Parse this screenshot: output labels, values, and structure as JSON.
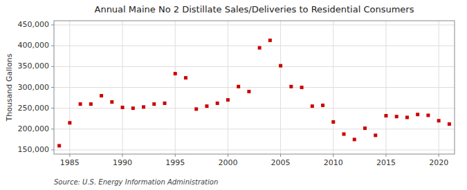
{
  "chart_data": {
    "type": "scatter",
    "title": "Annual Maine No 2 Distillate Sales/Deliveries to Residential Consumers",
    "ylabel": "Thousand Gallons",
    "annotation": "Source: U.S. Energy Information Administration",
    "color": "#cc0000",
    "marker": "square",
    "grid": true,
    "x": [
      1984,
      1985,
      1986,
      1987,
      1988,
      1989,
      1990,
      1991,
      1992,
      1993,
      1994,
      1995,
      1996,
      1997,
      1998,
      1999,
      2000,
      2001,
      2002,
      2003,
      2004,
      2005,
      2006,
      2007,
      2008,
      2009,
      2010,
      2011,
      2012,
      2013,
      2014,
      2015,
      2016,
      2017,
      2018,
      2019,
      2020,
      2021
    ],
    "values": [
      160000,
      215000,
      260000,
      260000,
      280000,
      265000,
      252000,
      250000,
      253000,
      260000,
      262000,
      333000,
      323000,
      248000,
      255000,
      262000,
      270000,
      302000,
      290000,
      395000,
      413000,
      352000,
      302000,
      300000,
      255000,
      257000,
      217000,
      188000,
      175000,
      202000,
      185000,
      232000,
      230000,
      228000,
      235000,
      233000,
      220000,
      212000
    ],
    "xlim": [
      1983.5,
      2021.5
    ],
    "xticks": [
      1985,
      1990,
      1995,
      2000,
      2005,
      2010,
      2015,
      2020
    ],
    "ylim": [
      140000,
      460000
    ],
    "yticks": [
      {
        "value": 150000,
        "label": "150,000"
      },
      {
        "value": 200000,
        "label": "200,000"
      },
      {
        "value": 250000,
        "label": "250,000"
      },
      {
        "value": 300000,
        "label": "300,000"
      },
      {
        "value": 350000,
        "label": "350,000"
      },
      {
        "value": 400000,
        "label": "400,000"
      },
      {
        "value": 450000,
        "label": "450,000"
      }
    ]
  }
}
